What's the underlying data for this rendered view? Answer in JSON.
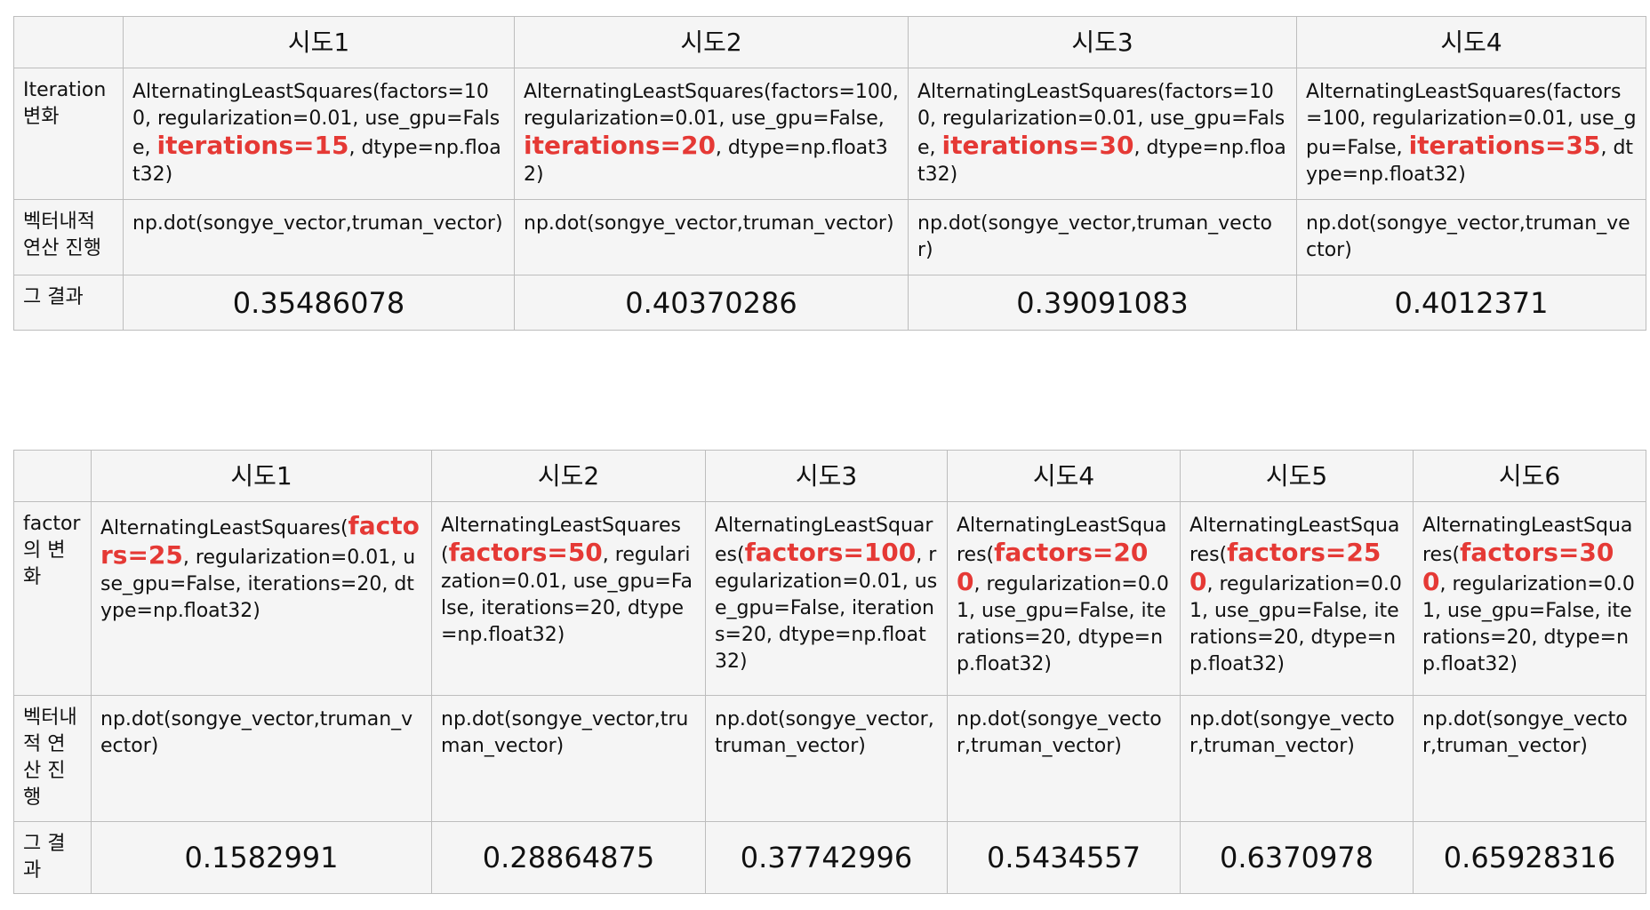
{
  "table_iterations": {
    "corner": "",
    "headers": [
      "시도1",
      "시도2",
      "시도3",
      "시도4"
    ],
    "row_labels": {
      "param": "Iteration 변화",
      "dot": "벡터내적 연산 진행",
      "result": "그 결과"
    },
    "params": [
      {
        "before": "AlternatingLeastSquares(factors=100, regularization=0.01, use_gpu=False, ",
        "highlight": "iterations=15",
        "after": ", dtype=np.float32)"
      },
      {
        "before": "AlternatingLeastSquares(factors=100, regularization=0.01, use_gpu=False, ",
        "highlight": "iterations=20",
        "after": ", dtype=np.float32)"
      },
      {
        "before": "AlternatingLeastSquares(factors=100, regularization=0.01, use_gpu=False, ",
        "highlight": "iterations=30",
        "after": ", dtype=np.float32)"
      },
      {
        "before": "AlternatingLeastSquares(factors=100, regularization=0.01, use_gpu=False, ",
        "highlight": "iterations=35",
        "after": ", dtype=np.float32)"
      }
    ],
    "dot": [
      "np.dot(songye_vector,truman_vector)",
      "np.dot(songye_vector,truman_vector)",
      "np.dot(songye_vector,truman_vector)",
      "np.dot(songye_vector,truman_vector)"
    ],
    "results": [
      "0.35486078",
      "0.40370286",
      "0.39091083",
      "0.4012371"
    ]
  },
  "table_factors": {
    "corner": "",
    "headers": [
      "시도1",
      "시도2",
      "시도3",
      "시도4",
      "시도5",
      "시도6"
    ],
    "row_labels": {
      "param": "factor 의 변화",
      "dot": "벡터내적 연산 진행",
      "result": "그 결과"
    },
    "params": [
      {
        "before": "AlternatingLeastSquares(",
        "highlight": "factors=25",
        "after": ", regularization=0.01, use_gpu=False, iterations=20, dtype=np.float32)"
      },
      {
        "before": "AlternatingLeastSquares(",
        "highlight": "factors=50",
        "after": ", regularization=0.01, use_gpu=False, iterations=20, dtype=np.float32)"
      },
      {
        "before": "AlternatingLeastSquares(",
        "highlight": "factors=100",
        "after": ", regularization=0.01, use_gpu=False, iterations=20, dtype=np.float32)"
      },
      {
        "before": "AlternatingLeastSquares(",
        "highlight": "factors=200",
        "after": ", regularization=0.01, use_gpu=False, iterations=20, dtype=np.float32)"
      },
      {
        "before": "AlternatingLeastSquares(",
        "highlight": "factors=250",
        "after": ", regularization=0.01, use_gpu=False, iterations=20, dtype=np.float32)"
      },
      {
        "before": "AlternatingLeastSquares(",
        "highlight": "factors=300",
        "after": ", regularization=0.01, use_gpu=False, iterations=20, dtype=np.float32)"
      }
    ],
    "dot": [
      "np.dot(songye_vector,truman_vector)",
      "np.dot(songye_vector,truman_vector)",
      "np.dot(songye_vector,truman_vector)",
      "np.dot(songye_vector,truman_vector)",
      "np.dot(songye_vector,truman_vector)",
      "np.dot(songye_vector,truman_vector)"
    ],
    "results": [
      "0.1582991",
      "0.28864875",
      "0.37742996",
      "0.5434557",
      "0.6370978",
      "0.65928316"
    ]
  }
}
